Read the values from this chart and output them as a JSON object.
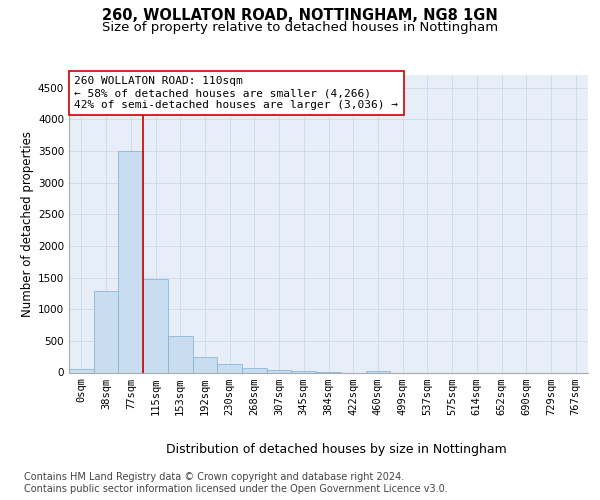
{
  "title1": "260, WOLLATON ROAD, NOTTINGHAM, NG8 1GN",
  "title2": "Size of property relative to detached houses in Nottingham",
  "xlabel": "Distribution of detached houses by size in Nottingham",
  "ylabel": "Number of detached properties",
  "bin_labels": [
    "0sqm",
    "38sqm",
    "77sqm",
    "115sqm",
    "153sqm",
    "192sqm",
    "230sqm",
    "268sqm",
    "307sqm",
    "345sqm",
    "384sqm",
    "422sqm",
    "460sqm",
    "499sqm",
    "537sqm",
    "575sqm",
    "614sqm",
    "652sqm",
    "690sqm",
    "729sqm",
    "767sqm"
  ],
  "bar_heights": [
    50,
    1290,
    3500,
    1480,
    570,
    245,
    130,
    75,
    45,
    30,
    5,
    0,
    30,
    0,
    0,
    0,
    0,
    0,
    0,
    0,
    0
  ],
  "bar_color": "#c9ddf0",
  "bar_edgecolor": "#7aafd4",
  "bar_linewidth": 0.5,
  "vline_color": "#cc0000",
  "vline_linewidth": 1.2,
  "vline_bin_index": 2,
  "ylim": [
    0,
    4700
  ],
  "yticks": [
    0,
    500,
    1000,
    1500,
    2000,
    2500,
    3000,
    3500,
    4000,
    4500
  ],
  "annotation_text": "260 WOLLATON ROAD: 110sqm\n← 58% of detached houses are smaller (4,266)\n42% of semi-detached houses are larger (3,036) →",
  "annotation_box_facecolor": "#ffffff",
  "annotation_box_edgecolor": "#cc0000",
  "annotation_fontsize": 8.0,
  "grid_color": "#cdd8e8",
  "background_color": "#e8eef8",
  "footer_line1": "Contains HM Land Registry data © Crown copyright and database right 2024.",
  "footer_line2": "Contains public sector information licensed under the Open Government Licence v3.0.",
  "title1_fontsize": 10.5,
  "title2_fontsize": 9.5,
  "xlabel_fontsize": 9.0,
  "ylabel_fontsize": 8.5,
  "tick_fontsize": 7.5,
  "footer_fontsize": 7.0
}
